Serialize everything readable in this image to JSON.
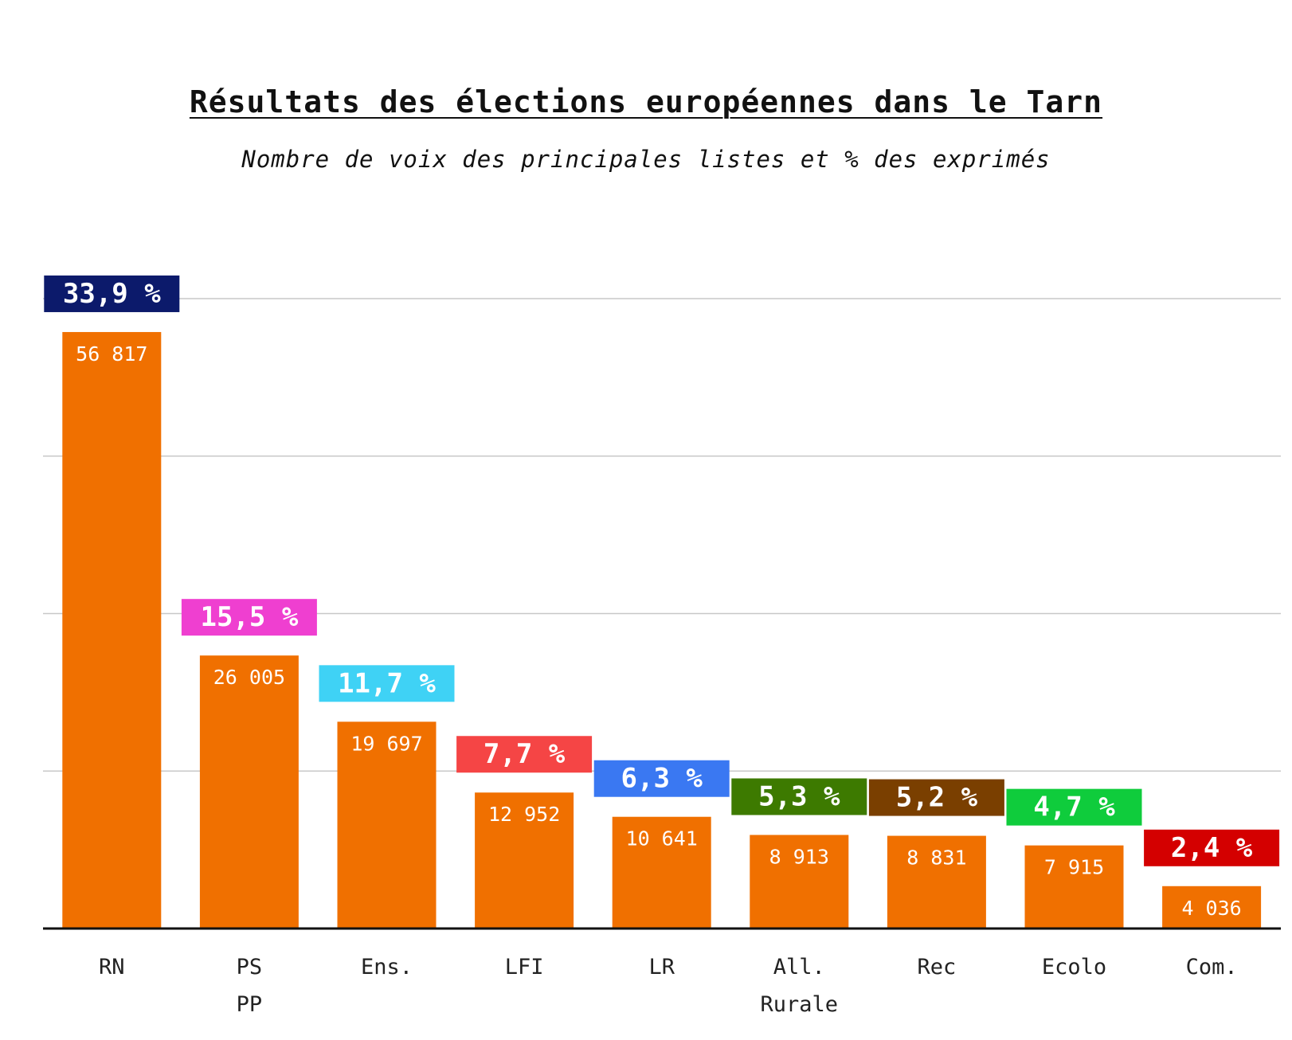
{
  "chart_data": {
    "type": "bar",
    "title": "Résultats des élections européennes dans le Tarn",
    "subtitle": "Nombre de voix des principales listes et % des exprimés",
    "xlabel": "",
    "ylabel": "",
    "ylim": [
      0,
      60000
    ],
    "gridlines": [
      15000,
      30000,
      45000,
      60000
    ],
    "grid": true,
    "bar_color": "#f07000",
    "categories": [
      [
        "RN"
      ],
      [
        "PS",
        "PP"
      ],
      [
        "Ens."
      ],
      [
        "LFI"
      ],
      [
        "LR"
      ],
      [
        "All.",
        "Rurale"
      ],
      [
        "Rec"
      ],
      [
        "Ecolo"
      ],
      [
        "Com."
      ]
    ],
    "values": [
      56817,
      26005,
      19697,
      12952,
      10641,
      8913,
      8831,
      7915,
      4036
    ],
    "value_labels": [
      "56 817",
      "26 005",
      "19 697",
      "12 952",
      "10 641",
      "8 913",
      "8 831",
      "7 915",
      "4 036"
    ],
    "percent_labels": [
      "33,9 %",
      "15,5 %",
      "11,7 %",
      "7,7 %",
      "6,3 %",
      "5,3 %",
      "5,2 %",
      "4,7 %",
      "2,4 %"
    ],
    "percent_colors": [
      "#0c1a6b",
      "#ef3fd0",
      "#3fd2f5",
      "#f54545",
      "#3a78f2",
      "#3d7a00",
      "#7a3f00",
      "#0fcc3c",
      "#d40000"
    ]
  }
}
